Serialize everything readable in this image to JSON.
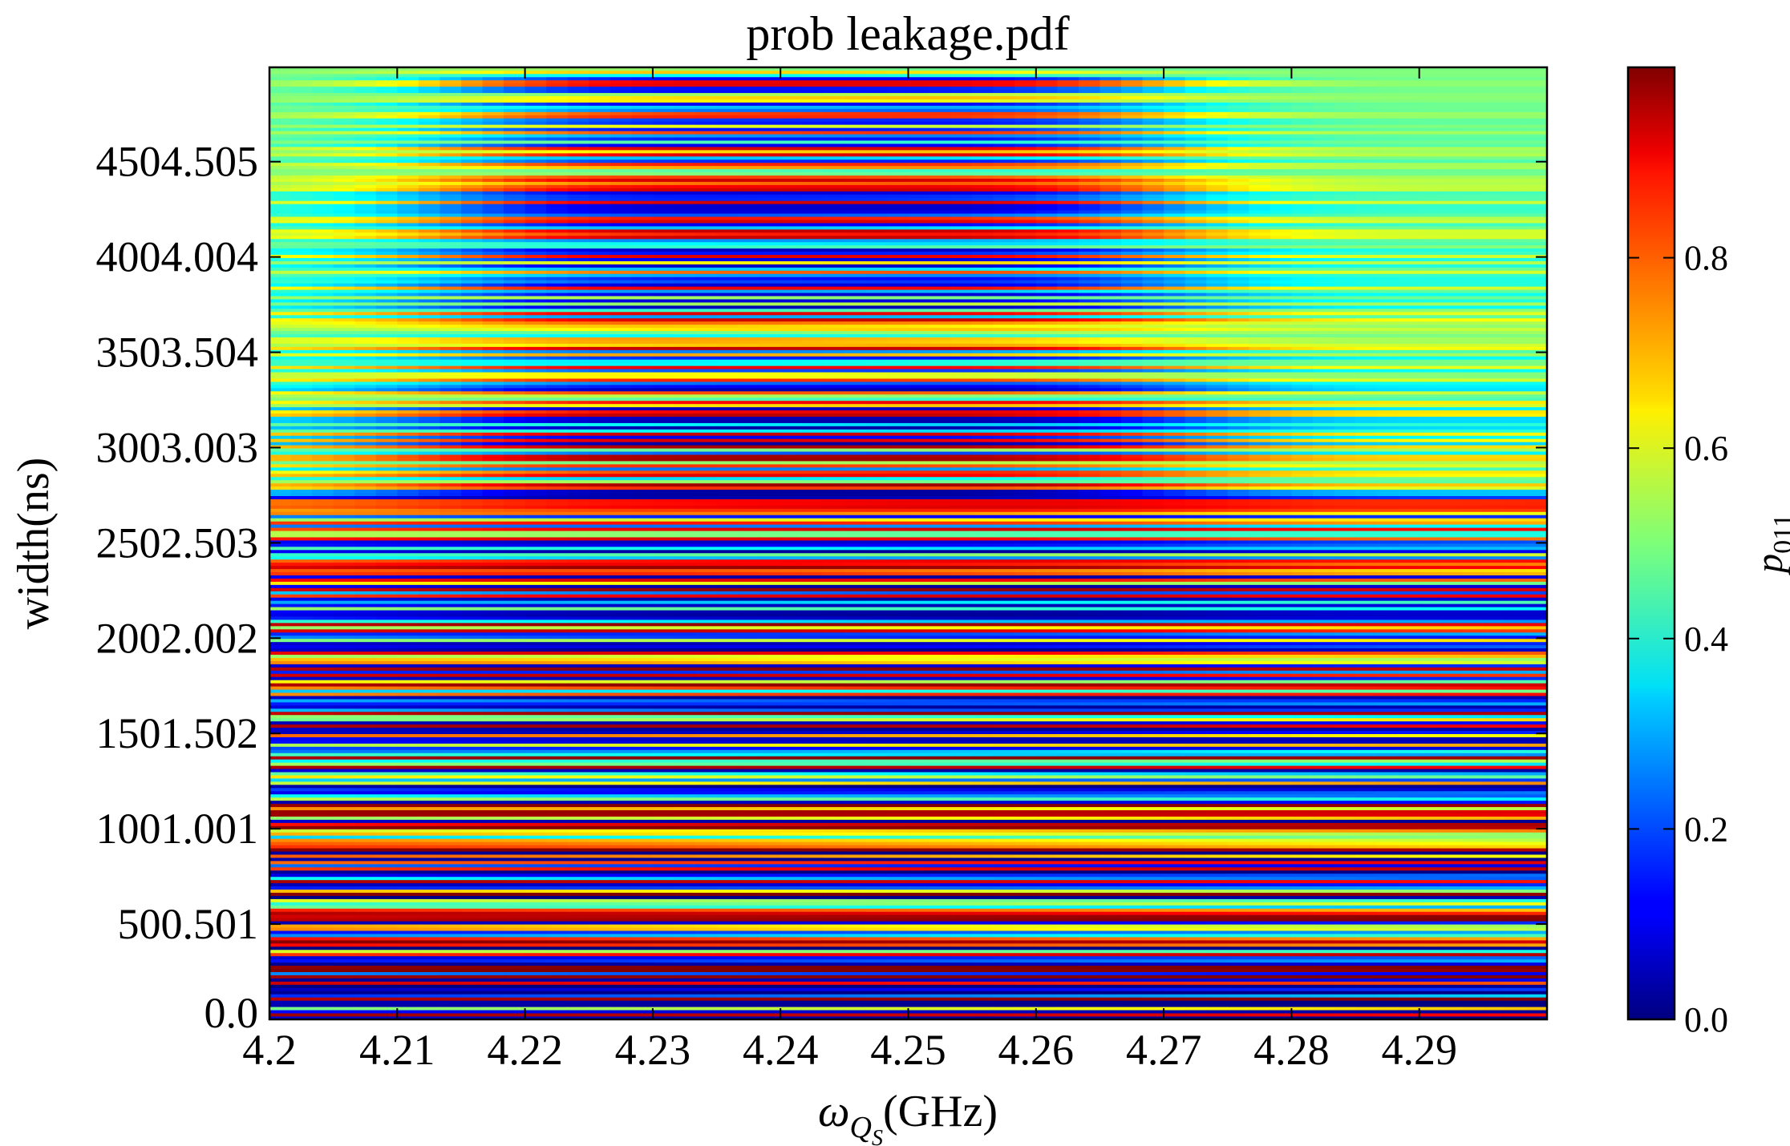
{
  "chart_data": {
    "type": "heatmap",
    "title": "prob leakage.pdf",
    "xlabel_symbol": "ω",
    "xlabel_sub": "Q",
    "xlabel_subsub": "S",
    "xlabel_unit": "(GHz)",
    "ylabel": "width(ns)",
    "colorbar_label_main": "p",
    "colorbar_label_sub": "011",
    "colormap": "jet",
    "xlim": [
      4.2,
      4.3
    ],
    "ylim": [
      0.0,
      5000.0
    ],
    "zlim": [
      0.0,
      1.0
    ],
    "x_ticks": [
      4.2,
      4.21,
      4.22,
      4.23,
      4.24,
      4.25,
      4.26,
      4.27,
      4.28,
      4.29
    ],
    "x_tick_labels": [
      "4.2",
      "4.21",
      "4.22",
      "4.23",
      "4.24",
      "4.25",
      "4.26",
      "4.27",
      "4.28",
      "4.29"
    ],
    "y_ticks": [
      0.0,
      500.501,
      1001.001,
      1501.502,
      2002.002,
      2502.503,
      3003.003,
      3503.504,
      4004.004,
      4504.505
    ],
    "y_tick_labels": [
      "0.0",
      "500.501",
      "1001.001",
      "1501.502",
      "2002.002",
      "2502.503",
      "3003.003",
      "3503.504",
      "4004.004",
      "4504.505"
    ],
    "colorbar_ticks": [
      0.0,
      0.2,
      0.4,
      0.6,
      0.8
    ],
    "colorbar_tick_labels": [
      "0.0",
      "0.2",
      "0.4",
      "0.6",
      "0.8"
    ],
    "description_values": {
      "rows": 300,
      "cols": 60,
      "baseline_value": 0.5,
      "max_oscillation_amplitude": 0.5
    }
  }
}
